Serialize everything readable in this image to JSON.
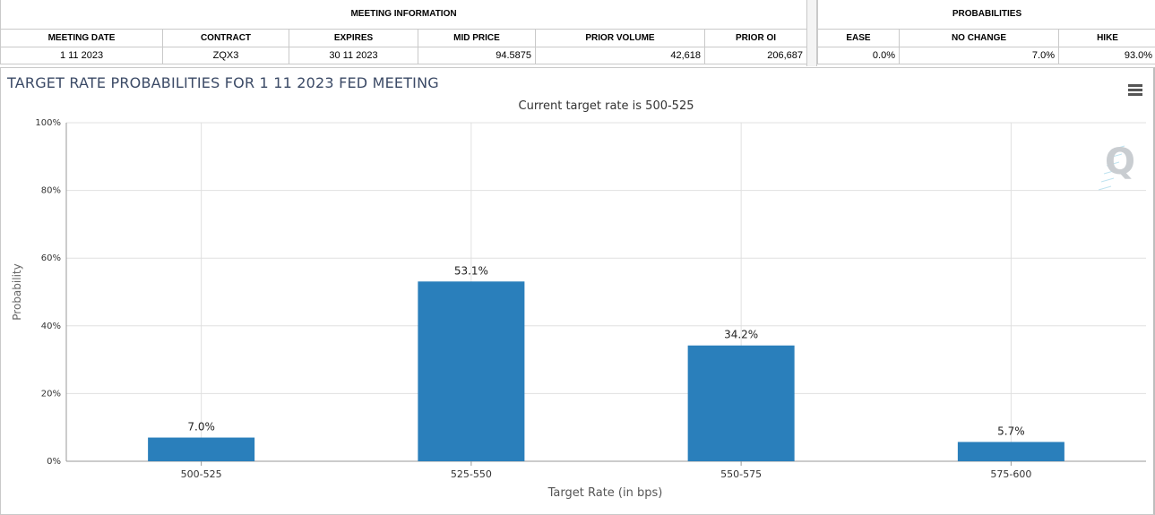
{
  "table": {
    "meeting_info_title": "MEETING INFORMATION",
    "probabilities_title": "PROBABILITIES",
    "headers": [
      "MEETING DATE",
      "CONTRACT",
      "EXPIRES",
      "MID PRICE",
      "PRIOR VOLUME",
      "PRIOR OI"
    ],
    "prob_headers": [
      "EASE",
      "NO CHANGE",
      "HIKE"
    ],
    "row": {
      "meeting_date": "1 11 2023",
      "contract": "ZQX3",
      "expires": "30 11 2023",
      "mid_price": "94.5875",
      "prior_volume": "42,618",
      "prior_oi": "206,687",
      "ease": "0.0%",
      "no_change": "7.0%",
      "hike": "93.0%"
    }
  },
  "chart_title": "TARGET RATE PROBABILITIES FOR 1 11 2023 FED MEETING",
  "chart_data": {
    "type": "bar",
    "subtitle": "Current target rate is 500-525",
    "categories": [
      "500-525",
      "525-550",
      "550-575",
      "575-600"
    ],
    "values": [
      7.0,
      53.1,
      34.2,
      5.7
    ],
    "value_labels": [
      "7.0%",
      "53.1%",
      "34.2%",
      "5.7%"
    ],
    "xlabel": "Target Rate (in bps)",
    "ylabel": "Probability",
    "ylim": [
      0,
      100
    ],
    "yticks": [
      "0%",
      "20%",
      "40%",
      "60%",
      "80%",
      "100%"
    ],
    "ytick_values": [
      0,
      20,
      40,
      60,
      80,
      100
    ],
    "grid": true,
    "bar_color": "#2a7fbb",
    "watermark": "Q"
  },
  "colors": {
    "title": "#3b4a66",
    "grid": "#e0e0e0",
    "axis_text": "#333333"
  }
}
